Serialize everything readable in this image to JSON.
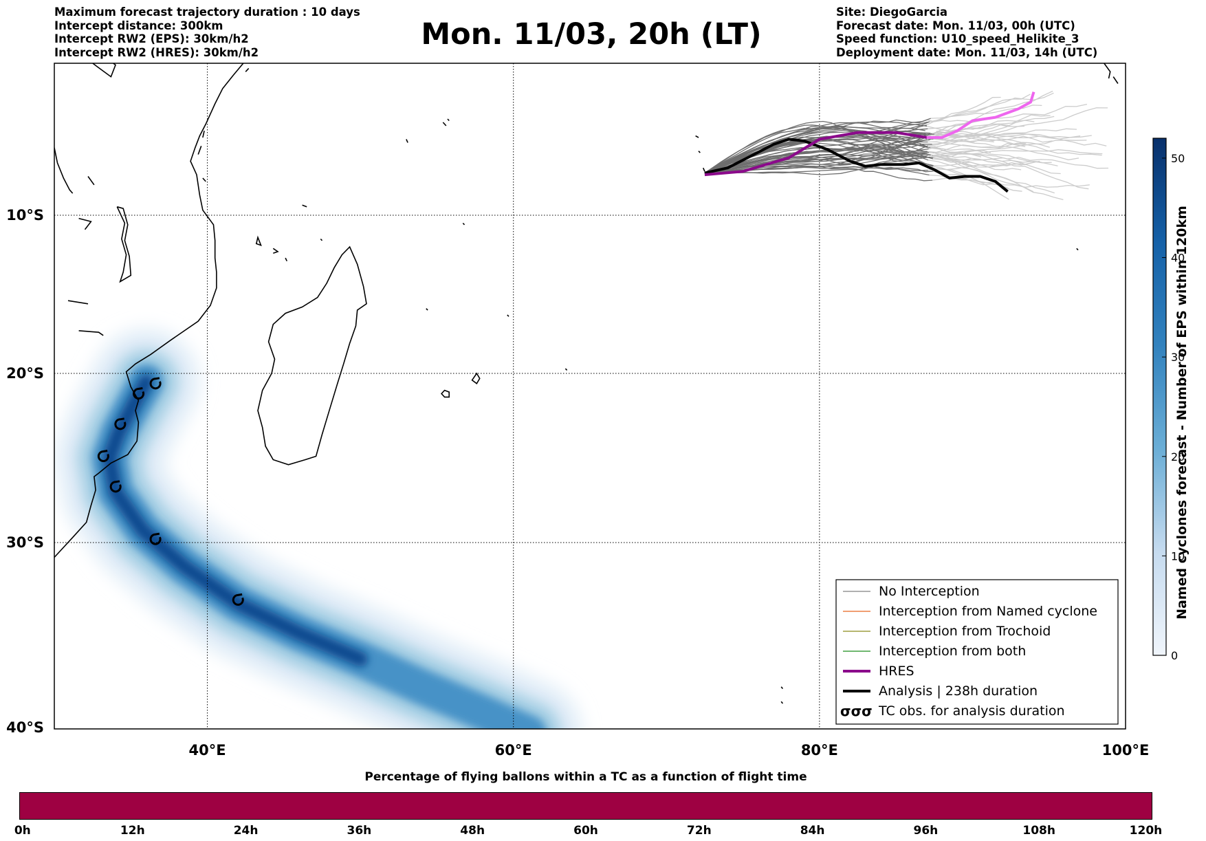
{
  "header": {
    "left_lines": [
      "Maximum forecast trajectory duration : 10 days",
      "Intercept distance: 300km",
      "Intercept RW2 (EPS):  30km/h2",
      "Intercept RW2 (HRES): 30km/h2"
    ],
    "title": "Mon. 11/03, 20h (LT)",
    "right_lines": [
      "Site: DiegoGarcia",
      "Forecast date: Mon. 11/03, 00h (UTC)",
      "Speed function: U10_speed_Helikite_3",
      "Deployment date: Mon. 11/03, 14h (UTC)"
    ]
  },
  "map": {
    "lon_range": [
      30,
      100
    ],
    "lat_range": [
      -40,
      -1
    ],
    "lon_ticks": [
      40,
      60,
      80,
      100
    ],
    "lon_tick_labels": [
      "40°E",
      "60°E",
      "80°E",
      "100°E"
    ],
    "lat_ticks": [
      -10,
      -20,
      -30,
      -40
    ],
    "lat_tick_labels": [
      "10°S",
      "20°S",
      "30°S",
      "40°S"
    ],
    "grid": true,
    "analysis_duration_h": 238,
    "hres_track": [
      [
        72.5,
        -7.6
      ],
      [
        75,
        -7.4
      ],
      [
        78,
        -6.6
      ],
      [
        80,
        -5.5
      ],
      [
        82.5,
        -5.1
      ],
      [
        85,
        -5.1
      ],
      [
        87,
        -5.4
      ],
      [
        88,
        -5.4
      ],
      [
        89,
        -5.0
      ],
      [
        90,
        -4.4
      ],
      [
        91.5,
        -4.2
      ],
      [
        93,
        -3.7
      ],
      [
        93.8,
        -3.3
      ],
      [
        94,
        -2.7
      ]
    ],
    "analysis_track": [
      [
        72.5,
        -7.5
      ],
      [
        74,
        -7.2
      ],
      [
        75.5,
        -6.5
      ],
      [
        77,
        -5.8
      ],
      [
        78,
        -5.5
      ],
      [
        79,
        -5.6
      ],
      [
        80.5,
        -6.1
      ],
      [
        82,
        -6.8
      ],
      [
        83,
        -7.1
      ],
      [
        84,
        -7.0
      ],
      [
        85.5,
        -7.0
      ],
      [
        86.5,
        -6.9
      ],
      [
        87.5,
        -7.3
      ],
      [
        88.5,
        -7.8
      ],
      [
        89.5,
        -7.7
      ],
      [
        90.5,
        -7.7
      ],
      [
        91.5,
        -8.0
      ],
      [
        92.3,
        -8.6
      ]
    ],
    "tc_observations": [
      [
        36.6,
        -20.6
      ],
      [
        35.5,
        -21.2
      ],
      [
        34.3,
        -23.0
      ],
      [
        33.2,
        -24.9
      ],
      [
        34.0,
        -26.7
      ],
      [
        36.6,
        -29.8
      ],
      [
        42.0,
        -33.1
      ]
    ],
    "eps_density_axis": [
      [
        36,
        -20.5
      ],
      [
        35.2,
        -21.8
      ],
      [
        34.2,
        -23.5
      ],
      [
        33.6,
        -25
      ],
      [
        34,
        -27
      ],
      [
        35.8,
        -29.3
      ],
      [
        38.5,
        -31.3
      ],
      [
        42,
        -33.3
      ],
      [
        46,
        -34.9
      ],
      [
        50,
        -36.3
      ],
      [
        54,
        -37.8
      ],
      [
        58,
        -39.2
      ],
      [
        61,
        -40.3
      ]
    ]
  },
  "legend": {
    "items": [
      {
        "label": "No Interception",
        "color": "#808080"
      },
      {
        "label": "Interception from Named cyclone",
        "color": "#e8651e"
      },
      {
        "label": "Interception from Trochoid",
        "color": "#8b8b1a"
      },
      {
        "label": "Interception from both",
        "color": "#1a8c1a"
      },
      {
        "label": "HRES",
        "color": "#8b0a8b"
      },
      {
        "label": "Analysis | 238h duration",
        "color": "#000000"
      },
      {
        "label": "TC obs. for analysis duration",
        "color": "#000000"
      }
    ],
    "tc_symbol": "σσσ",
    "placement": "lower-right"
  },
  "colorbar": {
    "label": "Named cyclones forecast - Number of EPS within 120km",
    "range": [
      0,
      52
    ],
    "ticks": [
      0,
      10,
      20,
      30,
      40,
      50
    ],
    "tick_labels": [
      "0",
      "10",
      "20",
      "30",
      "40",
      "50"
    ],
    "colors": [
      "#f0f5fb",
      "#08306b"
    ]
  },
  "pct_bar": {
    "title": "Percentage of flying ballons within a TC as a function of flight time",
    "color": "#9e0142",
    "tick_labels": [
      "0h",
      "12h",
      "24h",
      "36h",
      "48h",
      "60h",
      "72h",
      "84h",
      "96h",
      "108h",
      "120h"
    ]
  }
}
